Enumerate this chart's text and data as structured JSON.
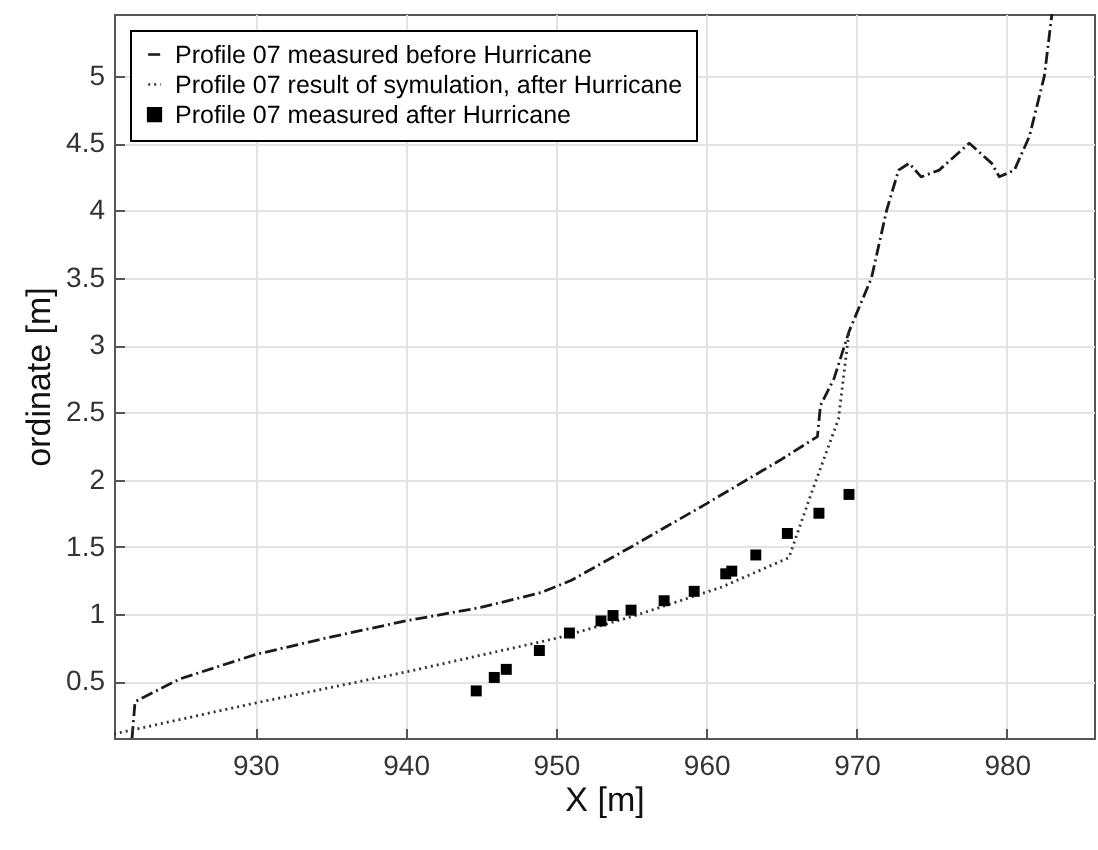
{
  "chart_data": {
    "type": "line",
    "xlabel": "X [m]",
    "ylabel": "ordinate [m]",
    "xlim": [
      920.6,
      985.8
    ],
    "ylim": [
      0.08,
      5.46
    ],
    "xticks": [
      930,
      940,
      950,
      960,
      970,
      980
    ],
    "yticks": [
      0.5,
      1,
      1.5,
      2,
      2.5,
      3,
      3.5,
      4,
      4.5,
      5
    ],
    "grid": true,
    "legend": "top left",
    "series": [
      {
        "name": "Profile 07 measured before Hurricane",
        "line_style": "dashed",
        "marker": "none",
        "color": "#1a1a1a",
        "x": [
          921.8,
          922,
          925,
          930,
          935,
          940,
          945,
          949,
          951,
          955,
          960,
          965,
          967.4,
          967.6,
          968.5,
          969.5,
          971,
          972,
          972.8,
          973.5,
          974.3,
          975.5,
          977.5,
          979,
          979.5,
          980.5,
          981.5,
          982.5,
          983
        ],
        "values": [
          0.08,
          0.35,
          0.52,
          0.7,
          0.83,
          0.95,
          1.05,
          1.16,
          1.25,
          1.5,
          1.82,
          2.15,
          2.32,
          2.55,
          2.75,
          3.1,
          3.5,
          4.0,
          4.3,
          4.35,
          4.25,
          4.3,
          4.5,
          4.35,
          4.25,
          4.3,
          4.55,
          5.0,
          5.46
        ]
      },
      {
        "name": "Profile 07 result of symulation, after Hurricane",
        "line_style": "dotted",
        "marker": "none",
        "color": "#333333",
        "x": [
          920.6,
          930,
          940,
          950,
          955,
          961,
          965.5,
          967,
          968.8,
          969.5
        ],
        "values": [
          0.11,
          0.34,
          0.57,
          0.82,
          0.98,
          1.2,
          1.42,
          1.9,
          2.45,
          3.1
        ]
      },
      {
        "name": "Profile 07 measured after Hurricane",
        "type": "scatter",
        "marker": "square",
        "color": "#000000",
        "x": [
          944.7,
          945.9,
          946.7,
          948.9,
          950.9,
          953.0,
          953.8,
          955.0,
          957.2,
          959.2,
          961.3,
          961.7,
          963.3,
          965.4,
          967.5,
          969.5
        ],
        "values": [
          0.43,
          0.53,
          0.59,
          0.73,
          0.86,
          0.95,
          0.99,
          1.03,
          1.1,
          1.17,
          1.3,
          1.32,
          1.44,
          1.6,
          1.75,
          1.89
        ]
      }
    ]
  }
}
